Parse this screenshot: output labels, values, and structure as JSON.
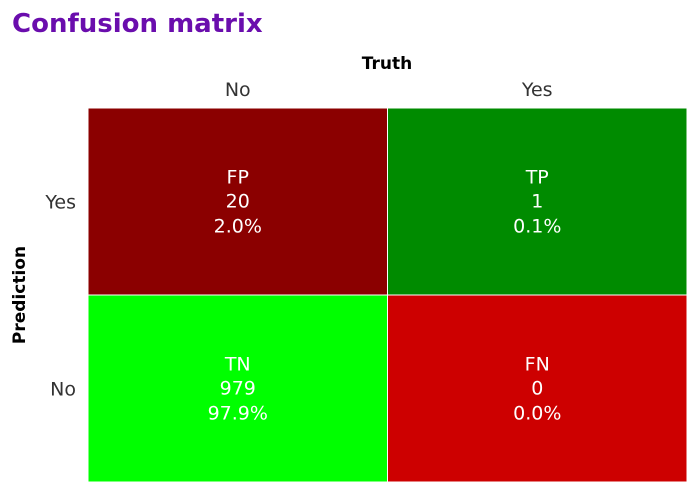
{
  "chart_data": {
    "type": "heatmap",
    "title": "Confusion matrix",
    "xlabel": "Truth",
    "ylabel": "Prediction",
    "x_categories": [
      "No",
      "Yes"
    ],
    "y_categories": [
      "Yes",
      "No"
    ],
    "grid": false,
    "cells": [
      {
        "row": 0,
        "col": 0,
        "label": "FP",
        "count": "20",
        "percent": "2.0%",
        "color": "#8b0000"
      },
      {
        "row": 0,
        "col": 1,
        "label": "TP",
        "count": "1",
        "percent": "0.1%",
        "color": "#008b00"
      },
      {
        "row": 1,
        "col": 0,
        "label": "TN",
        "count": "979",
        "percent": "97.9%",
        "color": "#00ff00"
      },
      {
        "row": 1,
        "col": 1,
        "label": "FN",
        "count": "0",
        "percent": "0.0%",
        "color": "#cd0000"
      }
    ]
  }
}
